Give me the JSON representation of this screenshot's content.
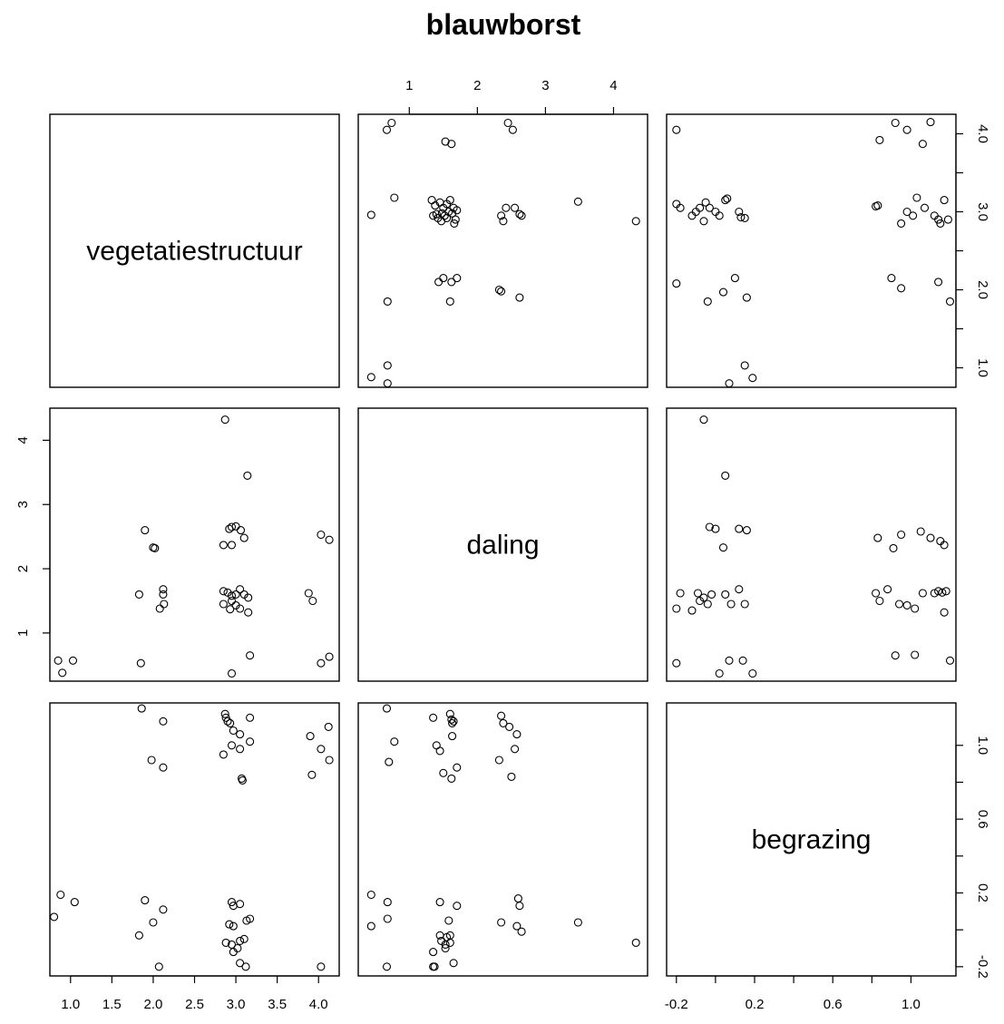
{
  "chart_data": {
    "type": "scatter",
    "title": "blauwborst",
    "variables": [
      "vegetatiestructuur",
      "daling",
      "begrazing"
    ],
    "axis_ticks": {
      "vegetatiestructuur": {
        "bottom": [
          "1.0",
          "1.5",
          "2.0",
          "2.5",
          "3.0",
          "3.5",
          "4.0"
        ],
        "right": [
          "1.0",
          "2.0",
          "3.0",
          "4.0"
        ],
        "right_values": [
          1,
          1.5,
          2,
          2.5,
          3,
          3.5,
          4
        ]
      },
      "daling": {
        "top": [
          "1",
          "2",
          "3",
          "4"
        ],
        "left": [
          "1",
          "2",
          "3",
          "4"
        ]
      },
      "begrazing": {
        "bottom": [
          "-0.2",
          "0.2",
          "0.6",
          "1.0"
        ],
        "bottom_values": [
          -0.2,
          0,
          0.2,
          0.4,
          0.6,
          0.8,
          1.0
        ],
        "right": [
          "-0.2",
          "0.2",
          "0.6",
          "1.0"
        ],
        "right_values": [
          -0.2,
          0,
          0.2,
          0.4,
          0.6,
          0.8,
          1.0
        ]
      }
    },
    "ranges": {
      "vegetatiestructuur": [
        0.75,
        4.25
      ],
      "daling": [
        0.25,
        4.5
      ],
      "begrazing": [
        -0.25,
        1.23
      ]
    },
    "pairs": [
      {
        "x": "daling",
        "y": "vegetatiestructuur",
        "points": [
          [
            0.67,
            4.05
          ],
          [
            0.74,
            4.14
          ],
          [
            2.45,
            4.14
          ],
          [
            2.52,
            4.05
          ],
          [
            1.53,
            3.9
          ],
          [
            1.62,
            3.87
          ],
          [
            0.78,
            3.18
          ],
          [
            0.44,
            2.96
          ],
          [
            1.33,
            3.15
          ],
          [
            1.38,
            3.08
          ],
          [
            1.45,
            3.12
          ],
          [
            1.5,
            3.05
          ],
          [
            1.55,
            3.1
          ],
          [
            1.6,
            3.15
          ],
          [
            1.65,
            3.05
          ],
          [
            1.7,
            3.02
          ],
          [
            1.35,
            2.95
          ],
          [
            1.42,
            2.92
          ],
          [
            1.48,
            2.98
          ],
          [
            1.52,
            2.95
          ],
          [
            1.58,
            3.0
          ],
          [
            1.63,
            2.98
          ],
          [
            1.68,
            2.9
          ],
          [
            1.4,
            2.97
          ],
          [
            1.47,
            2.88
          ],
          [
            1.55,
            2.92
          ],
          [
            1.66,
            2.85
          ],
          [
            2.35,
            2.95
          ],
          [
            2.42,
            3.05
          ],
          [
            2.55,
            3.05
          ],
          [
            2.62,
            2.97
          ],
          [
            2.65,
            2.95
          ],
          [
            2.38,
            2.88
          ],
          [
            3.48,
            3.13
          ],
          [
            4.33,
            2.88
          ],
          [
            1.43,
            2.1
          ],
          [
            1.5,
            2.15
          ],
          [
            1.62,
            2.1
          ],
          [
            1.7,
            2.15
          ],
          [
            2.32,
            2.0
          ],
          [
            2.35,
            1.98
          ],
          [
            2.62,
            1.9
          ],
          [
            1.6,
            1.85
          ],
          [
            0.68,
            1.85
          ],
          [
            0.68,
            1.03
          ],
          [
            0.44,
            0.88
          ],
          [
            0.68,
            0.8
          ]
        ]
      },
      {
        "x": "begrazing",
        "y": "vegetatiestructuur",
        "points": [
          [
            -0.2,
            4.05
          ],
          [
            -0.2,
            2.08
          ],
          [
            -0.2,
            3.1
          ],
          [
            -0.18,
            3.05
          ],
          [
            -0.12,
            2.95
          ],
          [
            -0.1,
            3.0
          ],
          [
            -0.08,
            3.05
          ],
          [
            -0.06,
            2.88
          ],
          [
            -0.05,
            3.12
          ],
          [
            -0.03,
            3.05
          ],
          [
            0.0,
            3.0
          ],
          [
            0.02,
            2.95
          ],
          [
            0.05,
            3.15
          ],
          [
            0.06,
            3.17
          ],
          [
            -0.04,
            1.85
          ],
          [
            0.04,
            1.97
          ],
          [
            0.1,
            2.15
          ],
          [
            0.12,
            3.0
          ],
          [
            0.13,
            2.93
          ],
          [
            0.15,
            2.92
          ],
          [
            0.16,
            1.9
          ],
          [
            0.15,
            1.03
          ],
          [
            0.19,
            0.87
          ],
          [
            0.07,
            0.8
          ],
          [
            0.82,
            3.07
          ],
          [
            0.83,
            3.08
          ],
          [
            0.84,
            3.92
          ],
          [
            0.92,
            4.14
          ],
          [
            0.98,
            4.05
          ],
          [
            1.06,
            3.87
          ],
          [
            1.1,
            4.15
          ],
          [
            0.95,
            2.85
          ],
          [
            0.98,
            3.0
          ],
          [
            1.01,
            2.95
          ],
          [
            1.03,
            3.18
          ],
          [
            1.07,
            3.05
          ],
          [
            1.12,
            2.95
          ],
          [
            1.14,
            2.9
          ],
          [
            1.15,
            2.85
          ],
          [
            1.17,
            3.15
          ],
          [
            1.19,
            2.9
          ],
          [
            0.9,
            2.15
          ],
          [
            0.95,
            2.02
          ],
          [
            1.14,
            2.1
          ],
          [
            1.2,
            1.85
          ]
        ]
      },
      {
        "x": "vegetatiestructuur",
        "y": "daling",
        "points": [
          [
            2.87,
            4.32
          ],
          [
            3.14,
            3.45
          ],
          [
            1.9,
            2.6
          ],
          [
            2.0,
            2.33
          ],
          [
            2.02,
            2.32
          ],
          [
            2.92,
            2.62
          ],
          [
            2.95,
            2.65
          ],
          [
            3.0,
            2.66
          ],
          [
            3.06,
            2.6
          ],
          [
            3.1,
            2.48
          ],
          [
            2.85,
            2.37
          ],
          [
            2.95,
            2.37
          ],
          [
            4.03,
            2.53
          ],
          [
            4.13,
            2.45
          ],
          [
            1.83,
            1.6
          ],
          [
            2.12,
            1.68
          ],
          [
            2.12,
            1.6
          ],
          [
            2.13,
            1.45
          ],
          [
            2.08,
            1.38
          ],
          [
            2.85,
            1.65
          ],
          [
            2.9,
            1.63
          ],
          [
            2.95,
            1.58
          ],
          [
            3.0,
            1.6
          ],
          [
            3.05,
            1.68
          ],
          [
            3.1,
            1.6
          ],
          [
            3.15,
            1.55
          ],
          [
            2.85,
            1.45
          ],
          [
            2.95,
            1.5
          ],
          [
            3.0,
            1.43
          ],
          [
            3.05,
            1.38
          ],
          [
            2.93,
            1.37
          ],
          [
            3.15,
            1.32
          ],
          [
            3.88,
            1.62
          ],
          [
            3.93,
            1.5
          ],
          [
            0.85,
            0.57
          ],
          [
            1.03,
            0.57
          ],
          [
            1.85,
            0.53
          ],
          [
            0.9,
            0.38
          ],
          [
            3.17,
            0.65
          ],
          [
            2.95,
            0.37
          ],
          [
            4.03,
            0.53
          ],
          [
            4.13,
            0.63
          ]
        ]
      },
      {
        "x": "begrazing",
        "y": "daling",
        "points": [
          [
            -0.06,
            4.32
          ],
          [
            0.05,
            3.45
          ],
          [
            -0.03,
            2.65
          ],
          [
            0.0,
            2.62
          ],
          [
            0.12,
            2.62
          ],
          [
            0.16,
            2.6
          ],
          [
            0.04,
            2.33
          ],
          [
            -0.18,
            1.62
          ],
          [
            -0.2,
            1.38
          ],
          [
            -0.12,
            1.35
          ],
          [
            -0.09,
            1.62
          ],
          [
            -0.08,
            1.5
          ],
          [
            -0.06,
            1.55
          ],
          [
            -0.04,
            1.45
          ],
          [
            -0.02,
            1.6
          ],
          [
            0.05,
            1.6
          ],
          [
            0.08,
            1.45
          ],
          [
            0.12,
            1.68
          ],
          [
            0.15,
            1.45
          ],
          [
            -0.2,
            0.53
          ],
          [
            0.02,
            0.37
          ],
          [
            0.07,
            0.57
          ],
          [
            0.14,
            0.57
          ],
          [
            0.19,
            0.37
          ],
          [
            0.83,
            2.48
          ],
          [
            0.91,
            2.32
          ],
          [
            0.95,
            2.53
          ],
          [
            1.05,
            2.58
          ],
          [
            1.1,
            2.48
          ],
          [
            1.15,
            2.43
          ],
          [
            1.17,
            2.37
          ],
          [
            0.82,
            1.62
          ],
          [
            0.84,
            1.5
          ],
          [
            0.88,
            1.68
          ],
          [
            0.94,
            1.45
          ],
          [
            0.98,
            1.43
          ],
          [
            1.02,
            1.38
          ],
          [
            1.06,
            1.62
          ],
          [
            1.12,
            1.62
          ],
          [
            1.14,
            1.65
          ],
          [
            1.16,
            1.63
          ],
          [
            1.18,
            1.65
          ],
          [
            1.17,
            1.32
          ],
          [
            0.92,
            0.65
          ],
          [
            1.02,
            0.66
          ],
          [
            1.2,
            0.57
          ]
        ]
      },
      {
        "x": "vegetatiestructuur",
        "y": "begrazing",
        "points": [
          [
            1.86,
            1.2
          ],
          [
            2.12,
            1.13
          ],
          [
            2.87,
            1.17
          ],
          [
            2.88,
            1.15
          ],
          [
            2.9,
            1.13
          ],
          [
            2.93,
            1.12
          ],
          [
            3.17,
            1.15
          ],
          [
            2.97,
            1.08
          ],
          [
            3.05,
            1.06
          ],
          [
            4.12,
            1.1
          ],
          [
            3.9,
            1.05
          ],
          [
            2.95,
            1.0
          ],
          [
            3.05,
            0.98
          ],
          [
            3.17,
            1.02
          ],
          [
            4.03,
            0.98
          ],
          [
            2.85,
            0.95
          ],
          [
            4.13,
            0.92
          ],
          [
            1.98,
            0.92
          ],
          [
            2.12,
            0.88
          ],
          [
            3.92,
            0.84
          ],
          [
            3.07,
            0.82
          ],
          [
            3.08,
            0.81
          ],
          [
            0.88,
            0.19
          ],
          [
            1.05,
            0.15
          ],
          [
            1.9,
            0.16
          ],
          [
            2.12,
            0.11
          ],
          [
            0.8,
            0.07
          ],
          [
            2.0,
            0.04
          ],
          [
            2.95,
            0.15
          ],
          [
            2.97,
            0.13
          ],
          [
            3.05,
            0.14
          ],
          [
            2.92,
            0.03
          ],
          [
            2.97,
            0.02
          ],
          [
            3.13,
            0.05
          ],
          [
            3.17,
            0.06
          ],
          [
            1.83,
            -0.03
          ],
          [
            2.88,
            -0.07
          ],
          [
            2.95,
            -0.08
          ],
          [
            3.05,
            -0.06
          ],
          [
            3.1,
            -0.05
          ],
          [
            2.97,
            -0.12
          ],
          [
            3.02,
            -0.1
          ],
          [
            3.05,
            -0.18
          ],
          [
            3.12,
            -0.2
          ],
          [
            2.07,
            -0.2
          ],
          [
            4.03,
            -0.2
          ]
        ]
      },
      {
        "x": "daling",
        "y": "begrazing",
        "points": [
          [
            0.67,
            1.2
          ],
          [
            1.35,
            1.15
          ],
          [
            1.6,
            1.17
          ],
          [
            1.62,
            1.14
          ],
          [
            1.63,
            1.12
          ],
          [
            1.65,
            1.13
          ],
          [
            2.35,
            1.16
          ],
          [
            2.38,
            1.12
          ],
          [
            2.47,
            1.1
          ],
          [
            2.58,
            1.06
          ],
          [
            1.63,
            1.05
          ],
          [
            0.78,
            1.02
          ],
          [
            1.4,
            1.0
          ],
          [
            1.45,
            0.97
          ],
          [
            2.55,
            0.98
          ],
          [
            0.7,
            0.91
          ],
          [
            2.32,
            0.92
          ],
          [
            1.5,
            0.85
          ],
          [
            1.7,
            0.88
          ],
          [
            1.62,
            0.82
          ],
          [
            2.5,
            0.83
          ],
          [
            0.44,
            0.19
          ],
          [
            0.68,
            0.15
          ],
          [
            1.45,
            0.15
          ],
          [
            1.7,
            0.13
          ],
          [
            2.6,
            0.17
          ],
          [
            2.62,
            0.13
          ],
          [
            0.68,
            0.06
          ],
          [
            0.44,
            0.02
          ],
          [
            1.58,
            0.05
          ],
          [
            2.35,
            0.04
          ],
          [
            2.58,
            0.02
          ],
          [
            2.65,
            -0.01
          ],
          [
            3.48,
            0.04
          ],
          [
            1.45,
            -0.03
          ],
          [
            1.55,
            -0.04
          ],
          [
            1.6,
            -0.03
          ],
          [
            1.47,
            -0.06
          ],
          [
            1.53,
            -0.08
          ],
          [
            1.6,
            -0.07
          ],
          [
            1.35,
            -0.12
          ],
          [
            1.53,
            -0.1
          ],
          [
            1.65,
            -0.18
          ],
          [
            1.35,
            -0.2
          ],
          [
            1.37,
            -0.2
          ],
          [
            0.67,
            -0.2
          ],
          [
            4.33,
            -0.07
          ]
        ]
      }
    ]
  }
}
